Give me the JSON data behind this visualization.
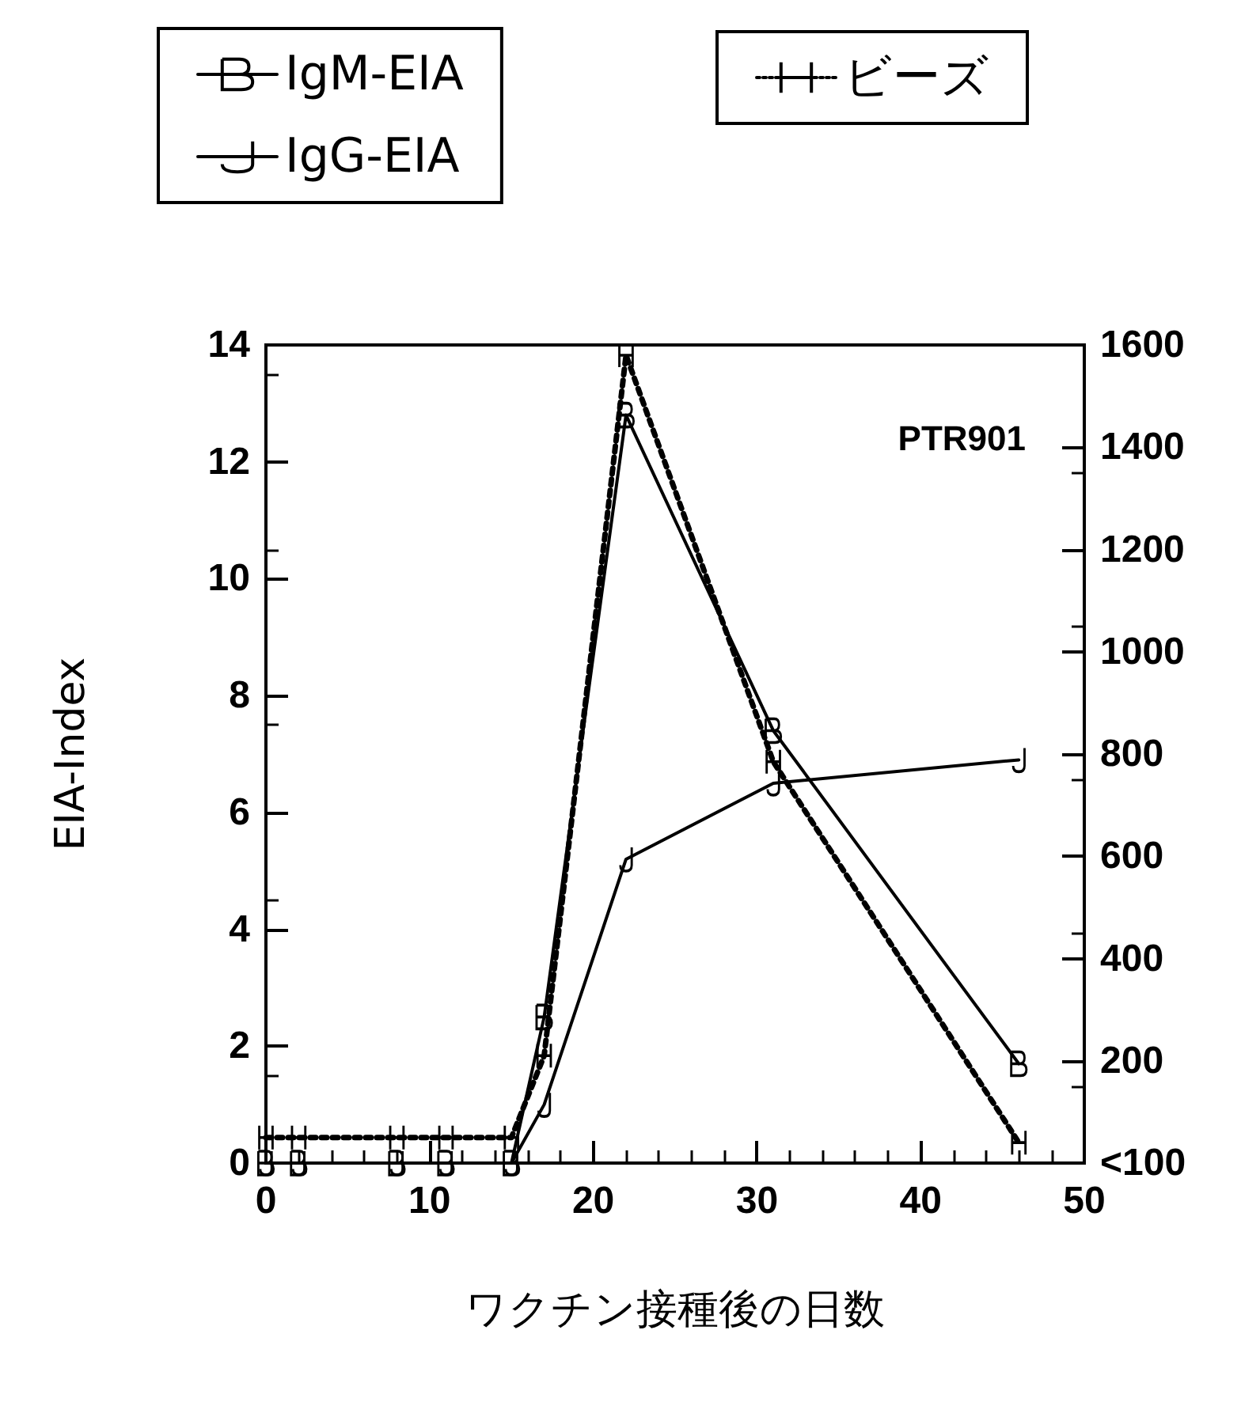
{
  "chart_data": {
    "type": "line",
    "xlabel": "ワクチン接種後の日数",
    "ylabel": "EIA-Index",
    "annotations": [
      "PTR901"
    ],
    "x": [
      0,
      2,
      8,
      11,
      15,
      17,
      22,
      31,
      46
    ],
    "xlim": [
      0,
      50
    ],
    "xticks": [
      0,
      10,
      20,
      30,
      40,
      50
    ],
    "ylim": [
      0,
      14
    ],
    "yticks": [
      0,
      2,
      4,
      6,
      8,
      10,
      12,
      14
    ],
    "y2lim": [
      0,
      1600
    ],
    "y2ticks": [
      {
        "value": 0,
        "label": "<100"
      },
      200,
      400,
      600,
      800,
      1000,
      1200,
      1400,
      1600
    ],
    "legend": "top",
    "grid": false,
    "series": [
      {
        "name": "IgM-EIA",
        "color": "#000000",
        "line_style": "solid",
        "marker": "cross",
        "values": [
          0,
          0,
          0,
          0,
          0,
          2.5,
          12.8,
          7.4,
          1.7
        ]
      },
      {
        "name": "IgG-EIA",
        "color": "#000000",
        "line_style": "solid",
        "marker": "cross",
        "values": [
          0,
          0,
          0,
          0,
          0,
          1.0,
          5.2,
          6.5,
          6.9
        ]
      },
      {
        "name": "ビーズ",
        "color": "#000000",
        "line_style": "dotted",
        "marker": "cross",
        "axis": "y2",
        "values": [
          50,
          50,
          50,
          50,
          50,
          210,
          1580,
          785,
          40
        ]
      }
    ]
  }
}
